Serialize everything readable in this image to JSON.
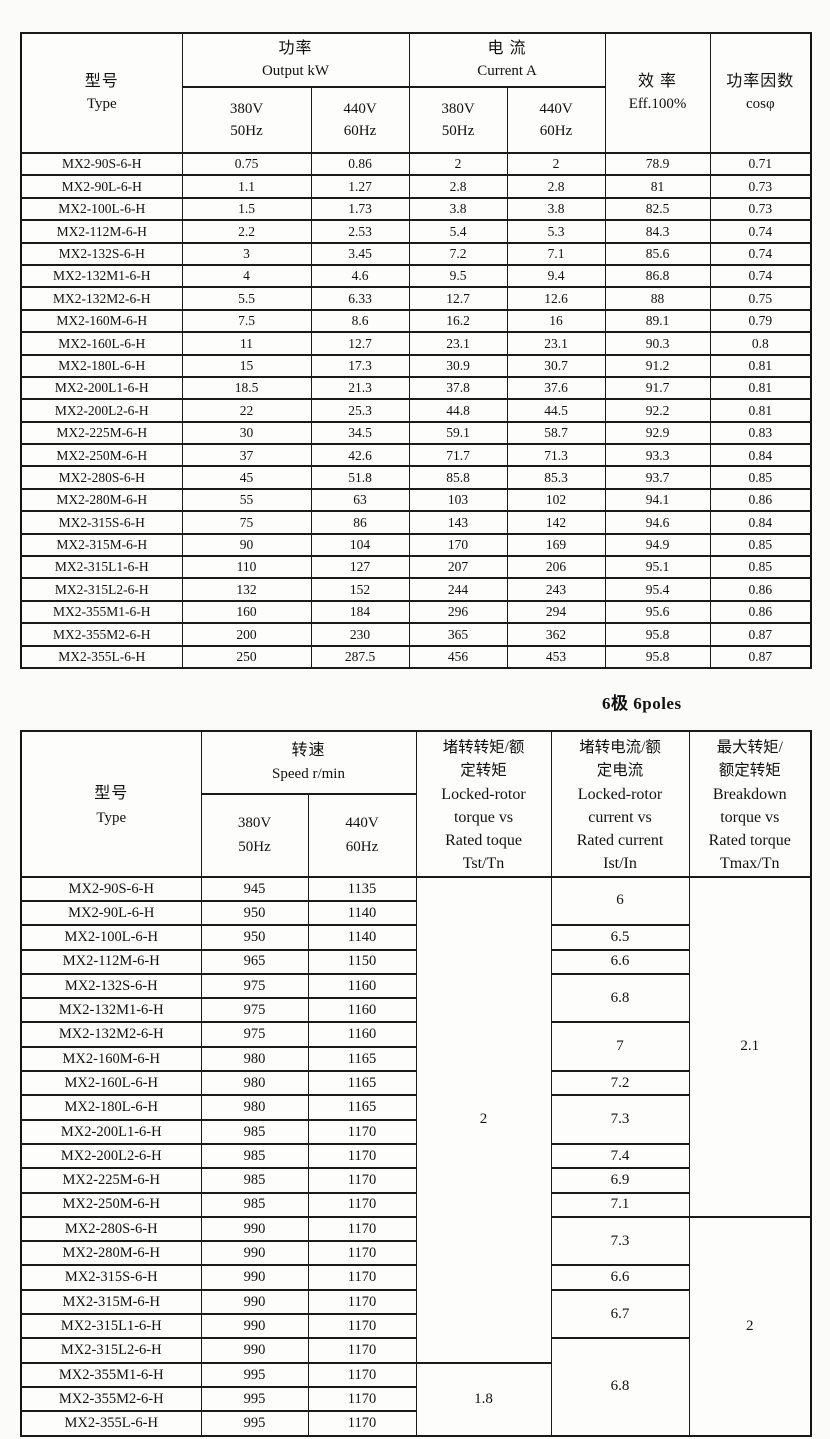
{
  "page": {
    "poles_note": "6极 6poles"
  },
  "table1": {
    "header": {
      "type_cn": "型号",
      "type_en": "Type",
      "power_cn": "功率",
      "power_en": "Output kW",
      "current_cn": "电 流",
      "current_en": "Current  A",
      "eff_cn": "效 率",
      "eff_en": "Eff.100%",
      "pf_cn": "功率因数",
      "pf_en": "cosφ",
      "v380": "380V",
      "hz50": "50Hz",
      "v440": "440V",
      "hz60": "60Hz"
    },
    "rows": [
      [
        "MX2-90S-6-H",
        "0.75",
        "0.86",
        "2",
        "2",
        "78.9",
        "0.71"
      ],
      [
        "MX2-90L-6-H",
        "1.1",
        "1.27",
        "2.8",
        "2.8",
        "81",
        "0.73"
      ],
      [
        "MX2-100L-6-H",
        "1.5",
        "1.73",
        "3.8",
        "3.8",
        "82.5",
        "0.73"
      ],
      [
        "MX2-112M-6-H",
        "2.2",
        "2.53",
        "5.4",
        "5.3",
        "84.3",
        "0.74"
      ],
      [
        "MX2-132S-6-H",
        "3",
        "3.45",
        "7.2",
        "7.1",
        "85.6",
        "0.74"
      ],
      [
        "MX2-132M1-6-H",
        "4",
        "4.6",
        "9.5",
        "9.4",
        "86.8",
        "0.74"
      ],
      [
        "MX2-132M2-6-H",
        "5.5",
        "6.33",
        "12.7",
        "12.6",
        "88",
        "0.75"
      ],
      [
        "MX2-160M-6-H",
        "7.5",
        "8.6",
        "16.2",
        "16",
        "89.1",
        "0.79"
      ],
      [
        "MX2-160L-6-H",
        "11",
        "12.7",
        "23.1",
        "23.1",
        "90.3",
        "0.8"
      ],
      [
        "MX2-180L-6-H",
        "15",
        "17.3",
        "30.9",
        "30.7",
        "91.2",
        "0.81"
      ],
      [
        "MX2-200L1-6-H",
        "18.5",
        "21.3",
        "37.8",
        "37.6",
        "91.7",
        "0.81"
      ],
      [
        "MX2-200L2-6-H",
        "22",
        "25.3",
        "44.8",
        "44.5",
        "92.2",
        "0.81"
      ],
      [
        "MX2-225M-6-H",
        "30",
        "34.5",
        "59.1",
        "58.7",
        "92.9",
        "0.83"
      ],
      [
        "MX2-250M-6-H",
        "37",
        "42.6",
        "71.7",
        "71.3",
        "93.3",
        "0.84"
      ],
      [
        "MX2-280S-6-H",
        "45",
        "51.8",
        "85.8",
        "85.3",
        "93.7",
        "0.85"
      ],
      [
        "MX2-280M-6-H",
        "55",
        "63",
        "103",
        "102",
        "94.1",
        "0.86"
      ],
      [
        "MX2-315S-6-H",
        "75",
        "86",
        "143",
        "142",
        "94.6",
        "0.84"
      ],
      [
        "MX2-315M-6-H",
        "90",
        "104",
        "170",
        "169",
        "94.9",
        "0.85"
      ],
      [
        "MX2-315L1-6-H",
        "110",
        "127",
        "207",
        "206",
        "95.1",
        "0.85"
      ],
      [
        "MX2-315L2-6-H",
        "132",
        "152",
        "244",
        "243",
        "95.4",
        "0.86"
      ],
      [
        "MX2-355M1-6-H",
        "160",
        "184",
        "296",
        "294",
        "95.6",
        "0.86"
      ],
      [
        "MX2-355M2-6-H",
        "200",
        "230",
        "365",
        "362",
        "95.8",
        "0.87"
      ],
      [
        "MX2-355L-6-H",
        "250",
        "287.5",
        "456",
        "453",
        "95.8",
        "0.87"
      ]
    ]
  },
  "table2": {
    "header": {
      "type_cn": "型号",
      "type_en": "Type",
      "speed_cn": "转速",
      "speed_en": "Speed r/min",
      "v380": "380V",
      "hz50": "50Hz",
      "v440": "440V",
      "hz60": "60Hz",
      "tst": [
        "堵转转矩/额",
        "定转矩",
        "Locked-rotor",
        "torque vs",
        "Rated toque",
        "Tst/Tn"
      ],
      "ist": [
        "堵转电流/额",
        "定电流",
        "Locked-rotor",
        "current vs",
        "Rated current",
        "Ist/In"
      ],
      "tmax": [
        "最大转矩/",
        "额定转矩",
        "Breakdown",
        "torque vs",
        "Rated torque",
        "Tmax/Tn"
      ]
    },
    "rows": [
      [
        "MX2-90S-6-H",
        "945",
        "1135"
      ],
      [
        "MX2-90L-6-H",
        "950",
        "1140"
      ],
      [
        "MX2-100L-6-H",
        "950",
        "1140"
      ],
      [
        "MX2-112M-6-H",
        "965",
        "1150"
      ],
      [
        "MX2-132S-6-H",
        "975",
        "1160"
      ],
      [
        "MX2-132M1-6-H",
        "975",
        "1160"
      ],
      [
        "MX2-132M2-6-H",
        "975",
        "1160"
      ],
      [
        "MX2-160M-6-H",
        "980",
        "1165"
      ],
      [
        "MX2-160L-6-H",
        "980",
        "1165"
      ],
      [
        "MX2-180L-6-H",
        "980",
        "1165"
      ],
      [
        "MX2-200L1-6-H",
        "985",
        "1170"
      ],
      [
        "MX2-200L2-6-H",
        "985",
        "1170"
      ],
      [
        "MX2-225M-6-H",
        "985",
        "1170"
      ],
      [
        "MX2-250M-6-H",
        "985",
        "1170"
      ],
      [
        "MX2-280S-6-H",
        "990",
        "1170"
      ],
      [
        "MX2-280M-6-H",
        "990",
        "1170"
      ],
      [
        "MX2-315S-6-H",
        "990",
        "1170"
      ],
      [
        "MX2-315M-6-H",
        "990",
        "1170"
      ],
      [
        "MX2-315L1-6-H",
        "990",
        "1170"
      ],
      [
        "MX2-315L2-6-H",
        "990",
        "1170"
      ],
      [
        "MX2-355M1-6-H",
        "995",
        "1170"
      ],
      [
        "MX2-355M2-6-H",
        "995",
        "1170"
      ],
      [
        "MX2-355L-6-H",
        "995",
        "1170"
      ]
    ],
    "tst_tn_groups": [
      {
        "value": "2",
        "span": 20
      },
      {
        "value": "1.8",
        "span": 3
      }
    ],
    "ist_in_groups": [
      {
        "value": "6",
        "span": 2
      },
      {
        "value": "6.5",
        "span": 1
      },
      {
        "value": "6.6",
        "span": 1
      },
      {
        "value": "6.8",
        "span": 2
      },
      {
        "value": "7",
        "span": 2
      },
      {
        "value": "7.2",
        "span": 1
      },
      {
        "value": "7.3",
        "span": 2
      },
      {
        "value": "7.4",
        "span": 1
      },
      {
        "value": "6.9",
        "span": 1
      },
      {
        "value": "7.1",
        "span": 1
      },
      {
        "value": "7.3",
        "span": 2
      },
      {
        "value": "6.6",
        "span": 1
      },
      {
        "value": "6.7",
        "span": 2
      },
      {
        "value": "6.8",
        "span": 4
      }
    ],
    "tmax_tn_groups": [
      {
        "value": "2.1",
        "span": 14
      },
      {
        "value": "2",
        "span": 9
      }
    ]
  }
}
